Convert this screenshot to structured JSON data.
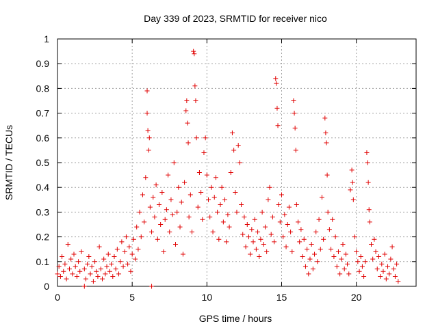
{
  "chart_data": {
    "type": "scatter",
    "title": "Day 339 of 2023, SRMTID for receiver nico",
    "xlabel": "GPS time / hours",
    "ylabel": "SRMTID / TECUs",
    "xlim": [
      0,
      24
    ],
    "ylim": [
      0,
      1
    ],
    "xticks": [
      0,
      5,
      10,
      15,
      20
    ],
    "yticks": [
      0,
      0.1,
      0.2,
      0.3,
      0.4,
      0.5,
      0.6,
      0.7,
      0.8,
      0.9,
      1
    ],
    "xtick_labels": [
      "0",
      "5",
      "10",
      "15",
      "20"
    ],
    "ytick_labels": [
      "0",
      "0.1",
      "0.2",
      "0.3",
      "0.4",
      "0.5",
      "0.6",
      "0.7",
      "0.8",
      "0.9",
      "1"
    ],
    "grid": true,
    "marker": "+",
    "color": "#e00000",
    "series": [
      {
        "name": "SRMTID",
        "points": [
          [
            0.0,
            0.05
          ],
          [
            0.1,
            0.08
          ],
          [
            0.2,
            0.04
          ],
          [
            0.3,
            0.12
          ],
          [
            0.4,
            0.06
          ],
          [
            0.5,
            0.09
          ],
          [
            0.6,
            0.03
          ],
          [
            0.7,
            0.17
          ],
          [
            0.8,
            0.07
          ],
          [
            0.9,
            0.11
          ],
          [
            1.0,
            0.05
          ],
          [
            1.1,
            0.13
          ],
          [
            1.2,
            0.08
          ],
          [
            1.3,
            0.04
          ],
          [
            1.4,
            0.1
          ],
          [
            1.5,
            0.06
          ],
          [
            1.6,
            0.14
          ],
          [
            1.8,
            0.07
          ],
          [
            1.9,
            0.03
          ],
          [
            2.0,
            0.09
          ],
          [
            2.1,
            0.12
          ],
          [
            2.2,
            0.05
          ],
          [
            2.3,
            0.08
          ],
          [
            2.4,
            0.02
          ],
          [
            2.5,
            0.1
          ],
          [
            2.6,
            0.06
          ],
          [
            2.7,
            0.04
          ],
          [
            2.8,
            0.16
          ],
          [
            2.9,
            0.07
          ],
          [
            3.0,
            0.03
          ],
          [
            3.1,
            0.11
          ],
          [
            3.2,
            0.05
          ],
          [
            3.3,
            0.08
          ],
          [
            3.4,
            0.13
          ],
          [
            3.5,
            0.06
          ],
          [
            3.6,
            0.09
          ],
          [
            3.7,
            0.04
          ],
          [
            3.8,
            0.12
          ],
          [
            3.9,
            0.07
          ],
          [
            4.0,
            0.15
          ],
          [
            4.1,
            0.05
          ],
          [
            4.2,
            0.1
          ],
          [
            4.3,
            0.18
          ],
          [
            4.4,
            0.08
          ],
          [
            4.5,
            0.14
          ],
          [
            4.6,
            0.2
          ],
          [
            4.7,
            0.09
          ],
          [
            4.8,
            0.16
          ],
          [
            4.9,
            0.06
          ],
          [
            5.0,
            0.13
          ],
          [
            5.1,
            0.19
          ],
          [
            5.2,
            0.11
          ],
          [
            5.3,
            0.24
          ],
          [
            5.4,
            0.15
          ],
          [
            5.5,
            0.3
          ],
          [
            5.6,
            0.2
          ],
          [
            5.7,
            0.37
          ],
          [
            5.8,
            0.26
          ],
          [
            5.9,
            0.44
          ],
          [
            6.0,
            0.79
          ],
          [
            6.0,
            0.7
          ],
          [
            6.05,
            0.63
          ],
          [
            6.1,
            0.55
          ],
          [
            6.15,
            0.6
          ],
          [
            6.2,
            0.32
          ],
          [
            6.3,
            0.22
          ],
          [
            6.4,
            0.36
          ],
          [
            6.5,
            0.28
          ],
          [
            6.6,
            0.41
          ],
          [
            6.7,
            0.19
          ],
          [
            6.8,
            0.33
          ],
          [
            6.9,
            0.25
          ],
          [
            7.0,
            0.38
          ],
          [
            7.1,
            0.14
          ],
          [
            7.2,
            0.27
          ],
          [
            7.3,
            0.31
          ],
          [
            7.4,
            0.45
          ],
          [
            7.5,
            0.22
          ],
          [
            7.6,
            0.35
          ],
          [
            7.7,
            0.29
          ],
          [
            7.8,
            0.5
          ],
          [
            7.9,
            0.17
          ],
          [
            8.0,
            0.3
          ],
          [
            8.1,
            0.4
          ],
          [
            8.2,
            0.24
          ],
          [
            8.3,
            0.34
          ],
          [
            8.4,
            0.13
          ],
          [
            8.5,
            0.42
          ],
          [
            8.6,
            0.71
          ],
          [
            8.65,
            0.75
          ],
          [
            8.7,
            0.66
          ],
          [
            8.75,
            0.58
          ],
          [
            8.8,
            0.28
          ],
          [
            8.9,
            0.37
          ],
          [
            9.0,
            0.22
          ],
          [
            9.1,
            0.95
          ],
          [
            9.15,
            0.94
          ],
          [
            9.2,
            0.81
          ],
          [
            9.25,
            0.75
          ],
          [
            9.3,
            0.6
          ],
          [
            9.4,
            0.32
          ],
          [
            9.5,
            0.46
          ],
          [
            9.6,
            0.38
          ],
          [
            9.7,
            0.27
          ],
          [
            9.8,
            0.54
          ],
          [
            9.9,
            0.6
          ],
          [
            10.0,
            0.45
          ],
          [
            10.1,
            0.35
          ],
          [
            10.2,
            0.28
          ],
          [
            10.3,
            0.4
          ],
          [
            10.4,
            0.22
          ],
          [
            10.5,
            0.36
          ],
          [
            10.6,
            0.44
          ],
          [
            10.7,
            0.3
          ],
          [
            10.8,
            0.19
          ],
          [
            10.9,
            0.33
          ],
          [
            11.0,
            0.4
          ],
          [
            11.1,
            0.26
          ],
          [
            11.2,
            0.35
          ],
          [
            11.3,
            0.18
          ],
          [
            11.4,
            0.29
          ],
          [
            11.5,
            0.24
          ],
          [
            11.6,
            0.46
          ],
          [
            11.7,
            0.62
          ],
          [
            11.8,
            0.55
          ],
          [
            11.9,
            0.38
          ],
          [
            12.0,
            0.3
          ],
          [
            12.1,
            0.57
          ],
          [
            12.2,
            0.5
          ],
          [
            12.3,
            0.33
          ],
          [
            12.4,
            0.21
          ],
          [
            12.5,
            0.28
          ],
          [
            12.6,
            0.16
          ],
          [
            12.7,
            0.25
          ],
          [
            12.8,
            0.2
          ],
          [
            12.9,
            0.13
          ],
          [
            13.0,
            0.23
          ],
          [
            13.1,
            0.18
          ],
          [
            13.2,
            0.27
          ],
          [
            13.3,
            0.15
          ],
          [
            13.4,
            0.22
          ],
          [
            13.5,
            0.12
          ],
          [
            13.6,
            0.19
          ],
          [
            13.7,
            0.3
          ],
          [
            13.8,
            0.17
          ],
          [
            13.9,
            0.24
          ],
          [
            14.0,
            0.14
          ],
          [
            14.1,
            0.35
          ],
          [
            14.2,
            0.4
          ],
          [
            14.3,
            0.21
          ],
          [
            14.4,
            0.28
          ],
          [
            14.5,
            0.18
          ],
          [
            14.6,
            0.84
          ],
          [
            14.65,
            0.82
          ],
          [
            14.7,
            0.72
          ],
          [
            14.75,
            0.65
          ],
          [
            14.8,
            0.33
          ],
          [
            14.9,
            0.26
          ],
          [
            15.0,
            0.37
          ],
          [
            15.1,
            0.2
          ],
          [
            15.2,
            0.29
          ],
          [
            15.3,
            0.16
          ],
          [
            15.4,
            0.25
          ],
          [
            15.5,
            0.32
          ],
          [
            15.6,
            0.22
          ],
          [
            15.7,
            0.14
          ],
          [
            15.8,
            0.75
          ],
          [
            15.85,
            0.7
          ],
          [
            15.9,
            0.64
          ],
          [
            15.95,
            0.55
          ],
          [
            16.0,
            0.33
          ],
          [
            16.1,
            0.26
          ],
          [
            16.2,
            0.18
          ],
          [
            16.3,
            0.23
          ],
          [
            16.4,
            0.12
          ],
          [
            16.5,
            0.19
          ],
          [
            16.6,
            0.08
          ],
          [
            16.7,
            0.15
          ],
          [
            16.8,
            0.05
          ],
          [
            16.9,
            0.11
          ],
          [
            17.0,
            0.17
          ],
          [
            17.1,
            0.07
          ],
          [
            17.2,
            0.13
          ],
          [
            17.3,
            0.22
          ],
          [
            17.4,
            0.1
          ],
          [
            17.5,
            0.27
          ],
          [
            17.6,
            0.15
          ],
          [
            17.7,
            0.36
          ],
          [
            17.8,
            0.19
          ],
          [
            17.9,
            0.68
          ],
          [
            17.95,
            0.62
          ],
          [
            18.0,
            0.58
          ],
          [
            18.05,
            0.45
          ],
          [
            18.1,
            0.3
          ],
          [
            18.2,
            0.23
          ],
          [
            18.3,
            0.15
          ],
          [
            18.4,
            0.27
          ],
          [
            18.5,
            0.12
          ],
          [
            18.6,
            0.2
          ],
          [
            18.7,
            0.08
          ],
          [
            18.8,
            0.14
          ],
          [
            18.9,
            0.05
          ],
          [
            19.0,
            0.11
          ],
          [
            19.1,
            0.17
          ],
          [
            19.2,
            0.07
          ],
          [
            19.3,
            0.13
          ],
          [
            19.4,
            0.09
          ],
          [
            19.5,
            0.05
          ],
          [
            19.6,
            0.39
          ],
          [
            19.7,
            0.47
          ],
          [
            19.75,
            0.42
          ],
          [
            19.8,
            0.35
          ],
          [
            19.9,
            0.2
          ],
          [
            20.0,
            0.14
          ],
          [
            20.1,
            0.1
          ],
          [
            20.2,
            0.06
          ],
          [
            20.3,
            0.12
          ],
          [
            20.4,
            0.08
          ],
          [
            20.5,
            0.04
          ],
          [
            20.6,
            0.1
          ],
          [
            20.7,
            0.54
          ],
          [
            20.75,
            0.5
          ],
          [
            20.8,
            0.42
          ],
          [
            20.85,
            0.31
          ],
          [
            20.9,
            0.26
          ],
          [
            21.0,
            0.17
          ],
          [
            21.1,
            0.11
          ],
          [
            21.2,
            0.19
          ],
          [
            21.3,
            0.14
          ],
          [
            21.4,
            0.07
          ],
          [
            21.5,
            0.12
          ],
          [
            21.6,
            0.04
          ],
          [
            21.7,
            0.09
          ],
          [
            21.8,
            0.06
          ],
          [
            21.9,
            0.13
          ],
          [
            22.0,
            0.03
          ],
          [
            22.1,
            0.08
          ],
          [
            22.2,
            0.05
          ],
          [
            22.3,
            0.11
          ],
          [
            22.4,
            0.16
          ],
          [
            22.5,
            0.07
          ],
          [
            22.6,
            0.04
          ],
          [
            22.7,
            0.09
          ],
          [
            22.8,
            0.02
          ],
          [
            1.8,
            0.0
          ],
          [
            6.3,
            0.0
          ]
        ]
      }
    ]
  }
}
